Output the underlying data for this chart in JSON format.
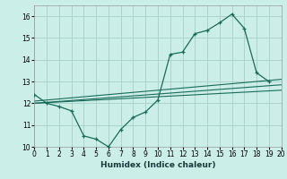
{
  "xlabel": "Humidex (Indice chaleur)",
  "background_color": "#cceee8",
  "grid_color": "#aad4cc",
  "line_color": "#1a6b5a",
  "xlim": [
    0,
    20
  ],
  "ylim": [
    10,
    16.5
  ],
  "xticks": [
    0,
    1,
    2,
    3,
    4,
    5,
    6,
    7,
    8,
    9,
    10,
    11,
    12,
    13,
    14,
    15,
    16,
    17,
    18,
    19,
    20
  ],
  "yticks": [
    10,
    11,
    12,
    13,
    14,
    15,
    16
  ],
  "series1_x": [
    0,
    1,
    2,
    3,
    4,
    5,
    6,
    7,
    8,
    9,
    10,
    11,
    12,
    13,
    14,
    15,
    16,
    17,
    18,
    19
  ],
  "series1_y": [
    12.4,
    12.0,
    11.85,
    11.65,
    10.5,
    10.35,
    10.0,
    10.8,
    11.35,
    11.6,
    12.15,
    14.25,
    14.35,
    15.2,
    15.35,
    15.7,
    16.1,
    15.45,
    13.4,
    13.0
  ],
  "series2_x": [
    0,
    20
  ],
  "series2_y": [
    12.1,
    13.1
  ],
  "series3_x": [
    0,
    20
  ],
  "series3_y": [
    12.0,
    12.85
  ],
  "series4_x": [
    0,
    20
  ],
  "series4_y": [
    12.0,
    12.6
  ]
}
